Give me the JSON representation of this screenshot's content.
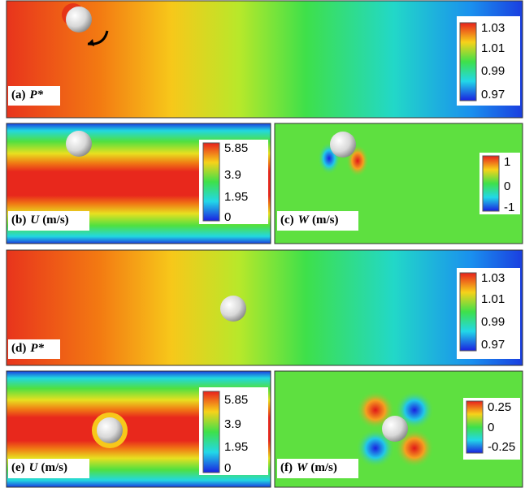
{
  "panels": [
    {
      "letter": "(a)",
      "symbol": "P*",
      "ticks": [
        "1.03",
        "1.01",
        "0.99",
        "0.97"
      ]
    },
    {
      "letter": "(b)",
      "symbol": "U",
      "unit": "(m/s)",
      "ticks": [
        "5.85",
        "3.9",
        "1.95",
        "0"
      ]
    },
    {
      "letter": "(c)",
      "symbol": "W",
      "unit": "(m/s)",
      "ticks": [
        "1",
        "0",
        "-1"
      ]
    },
    {
      "letter": "(d)",
      "symbol": "P*",
      "ticks": [
        "1.03",
        "1.01",
        "0.99",
        "0.97"
      ]
    },
    {
      "letter": "(e)",
      "symbol": "U",
      "unit": "(m/s)",
      "ticks": [
        "5.85",
        "3.9",
        "1.95",
        "0"
      ]
    },
    {
      "letter": "(f)",
      "symbol": "W",
      "unit": "(m/s)",
      "ticks": [
        "0.25",
        "0",
        "-0.25"
      ]
    }
  ]
}
